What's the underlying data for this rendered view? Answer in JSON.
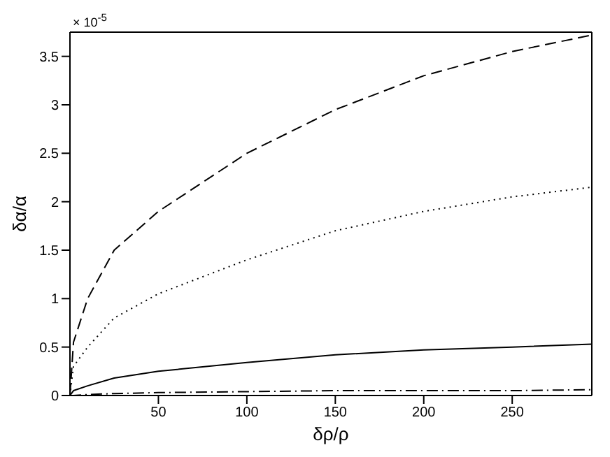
{
  "chart_data": {
    "type": "line",
    "xlabel": "δρ/ρ",
    "ylabel": "δα/α",
    "annotations": [
      "× 10$^{-5}$"
    ],
    "x": [
      0,
      2,
      10,
      25,
      50,
      100,
      150,
      200,
      250,
      295
    ],
    "series": [
      {
        "color": "#000000",
        "line_style": "dashed",
        "values": [
          0,
          0.55,
          1.0,
          1.5,
          1.9,
          2.5,
          2.95,
          3.3,
          3.55,
          3.72
        ]
      },
      {
        "color": "#000000",
        "line_style": "dotted",
        "values": [
          0,
          0.3,
          0.5,
          0.8,
          1.05,
          1.4,
          1.7,
          1.9,
          2.05,
          2.15
        ]
      },
      {
        "color": "#000000",
        "line_style": "solid",
        "values": [
          0,
          0.05,
          0.1,
          0.18,
          0.25,
          0.34,
          0.42,
          0.47,
          0.5,
          0.53
        ]
      },
      {
        "color": "#000000",
        "line_style": "dashdot",
        "values": [
          0,
          0,
          0.01,
          0.02,
          0.03,
          0.04,
          0.05,
          0.05,
          0.05,
          0.06
        ]
      }
    ],
    "xlim": [
      0,
      295
    ],
    "xticks": [
      50,
      100,
      150,
      200,
      250
    ],
    "ylim": [
      0,
      3.75
    ],
    "yticks": [
      0,
      0.5,
      1,
      1.5,
      2,
      2.5,
      3,
      3.5
    ],
    "marker": "none"
  }
}
